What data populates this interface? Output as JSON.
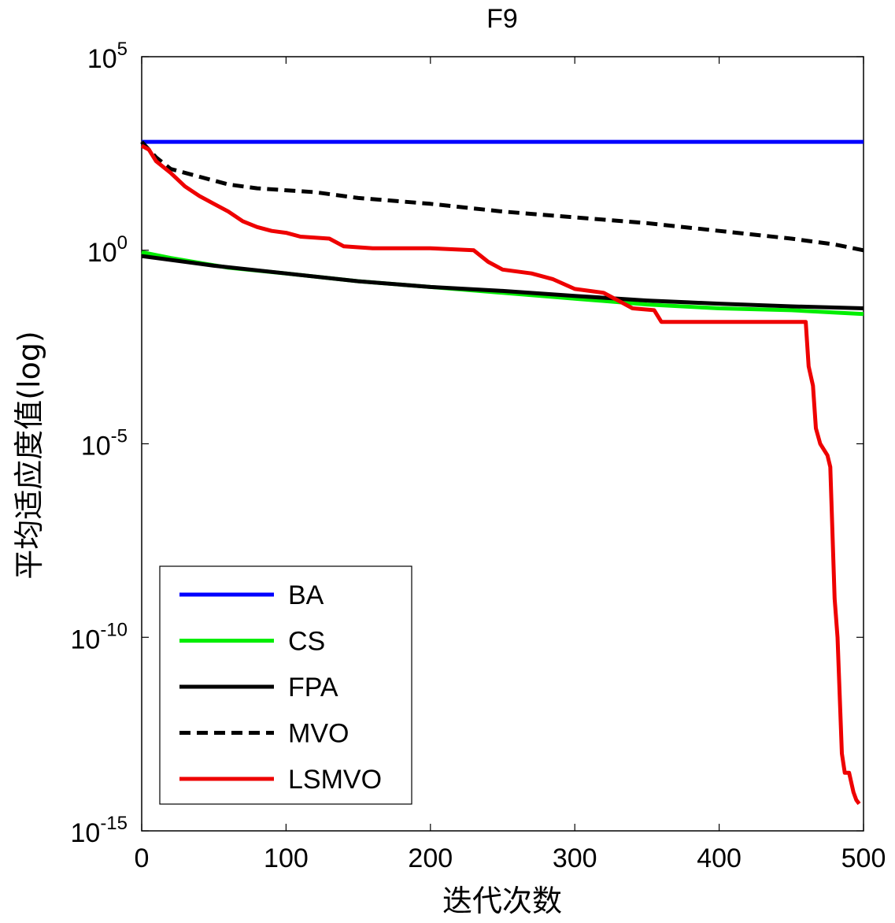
{
  "chart_data": {
    "type": "line",
    "title": "F9",
    "xlabel": "迭代次数",
    "ylabel": "平均适应度值(log)",
    "xscale": "linear",
    "yscale": "log",
    "xlim": [
      0,
      500
    ],
    "ylim_exp": [
      -15,
      5
    ],
    "xticks": [
      {
        "value": 0,
        "label": "0"
      },
      {
        "value": 100,
        "label": "100"
      },
      {
        "value": 200,
        "label": "200"
      },
      {
        "value": 300,
        "label": "300"
      },
      {
        "value": 400,
        "label": "400"
      },
      {
        "value": 500,
        "label": "500"
      }
    ],
    "yticks": [
      {
        "exp": 5,
        "base": "10",
        "sup": "5"
      },
      {
        "exp": 0,
        "base": "10",
        "sup": "0"
      },
      {
        "exp": -5,
        "base": "10",
        "sup": "-5"
      },
      {
        "exp": -10,
        "base": "10",
        "sup": "-10"
      },
      {
        "exp": -15,
        "base": "10",
        "sup": "-15"
      }
    ],
    "grid": false,
    "legend_position": "bottom-left",
    "series": [
      {
        "name": "BA",
        "color": "#0000ff",
        "dash": "solid",
        "points": [
          [
            0,
            2.8
          ],
          [
            500,
            2.8
          ]
        ]
      },
      {
        "name": "CS",
        "color": "#00ee00",
        "dash": "solid",
        "points": [
          [
            0,
            -0.05
          ],
          [
            20,
            -0.2
          ],
          [
            60,
            -0.45
          ],
          [
            100,
            -0.6
          ],
          [
            150,
            -0.8
          ],
          [
            200,
            -0.95
          ],
          [
            250,
            -1.1
          ],
          [
            300,
            -1.25
          ],
          [
            350,
            -1.4
          ],
          [
            400,
            -1.5
          ],
          [
            450,
            -1.55
          ],
          [
            500,
            -1.65
          ]
        ]
      },
      {
        "name": "FPA",
        "color": "#000000",
        "dash": "solid",
        "points": [
          [
            0,
            -0.15
          ],
          [
            50,
            -0.4
          ],
          [
            100,
            -0.6
          ],
          [
            150,
            -0.8
          ],
          [
            200,
            -0.95
          ],
          [
            250,
            -1.05
          ],
          [
            300,
            -1.18
          ],
          [
            350,
            -1.3
          ],
          [
            400,
            -1.38
          ],
          [
            450,
            -1.45
          ],
          [
            500,
            -1.5
          ]
        ]
      },
      {
        "name": "MVO",
        "color": "#000000",
        "dash": "dashed",
        "points": [
          [
            0,
            2.8
          ],
          [
            10,
            2.4
          ],
          [
            20,
            2.1
          ],
          [
            40,
            1.9
          ],
          [
            60,
            1.7
          ],
          [
            80,
            1.6
          ],
          [
            100,
            1.55
          ],
          [
            120,
            1.5
          ],
          [
            150,
            1.35
          ],
          [
            200,
            1.2
          ],
          [
            250,
            1.0
          ],
          [
            300,
            0.85
          ],
          [
            350,
            0.7
          ],
          [
            400,
            0.5
          ],
          [
            450,
            0.3
          ],
          [
            480,
            0.15
          ],
          [
            500,
            0.0
          ]
        ]
      },
      {
        "name": "LSMVO",
        "color": "#ee0000",
        "dash": "solid",
        "points": [
          [
            0,
            2.7
          ],
          [
            5,
            2.6
          ],
          [
            10,
            2.3
          ],
          [
            20,
            2.0
          ],
          [
            30,
            1.65
          ],
          [
            40,
            1.4
          ],
          [
            50,
            1.2
          ],
          [
            60,
            1.0
          ],
          [
            70,
            0.75
          ],
          [
            80,
            0.6
          ],
          [
            90,
            0.5
          ],
          [
            100,
            0.45
          ],
          [
            110,
            0.35
          ],
          [
            130,
            0.3
          ],
          [
            140,
            0.1
          ],
          [
            160,
            0.05
          ],
          [
            200,
            0.05
          ],
          [
            230,
            0.0
          ],
          [
            240,
            -0.3
          ],
          [
            250,
            -0.5
          ],
          [
            270,
            -0.6
          ],
          [
            285,
            -0.75
          ],
          [
            300,
            -1.0
          ],
          [
            320,
            -1.1
          ],
          [
            330,
            -1.3
          ],
          [
            340,
            -1.5
          ],
          [
            355,
            -1.55
          ],
          [
            360,
            -1.85
          ],
          [
            380,
            -1.85
          ],
          [
            420,
            -1.85
          ],
          [
            455,
            -1.85
          ],
          [
            460,
            -1.85
          ],
          [
            462,
            -3.0
          ],
          [
            465,
            -3.5
          ],
          [
            467,
            -4.6
          ],
          [
            470,
            -5.0
          ],
          [
            475,
            -5.3
          ],
          [
            477,
            -5.6
          ],
          [
            480,
            -9.0
          ],
          [
            482,
            -10.0
          ],
          [
            485,
            -13.0
          ],
          [
            487,
            -13.5
          ],
          [
            490,
            -13.5
          ],
          [
            493,
            -14.0
          ],
          [
            495,
            -14.2
          ],
          [
            497,
            -14.3
          ]
        ]
      }
    ]
  }
}
